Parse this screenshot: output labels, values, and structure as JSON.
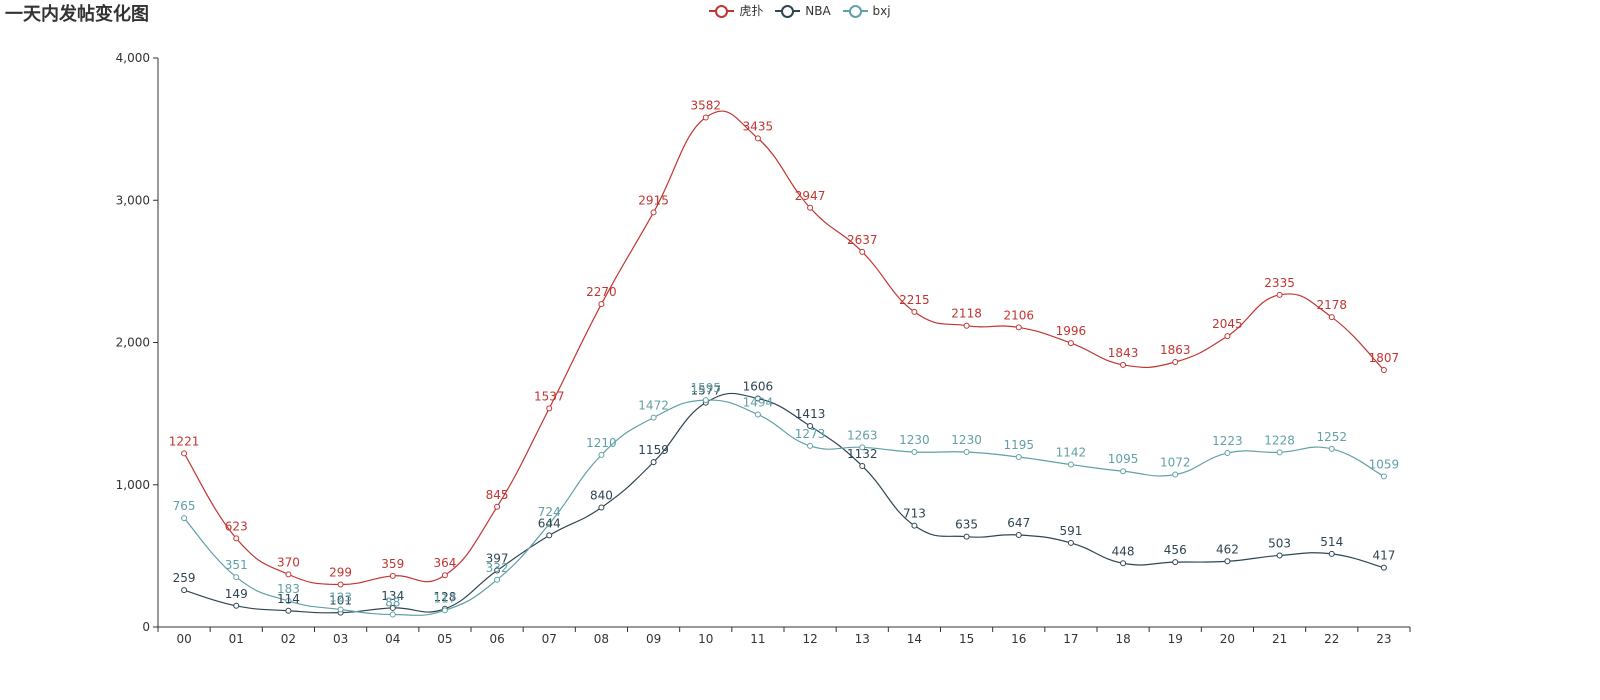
{
  "chart_data": {
    "type": "line",
    "title": "一天内发帖变化图",
    "categories": [
      "00",
      "01",
      "02",
      "03",
      "04",
      "05",
      "06",
      "07",
      "08",
      "09",
      "10",
      "11",
      "12",
      "13",
      "14",
      "15",
      "16",
      "17",
      "18",
      "19",
      "20",
      "21",
      "22",
      "23"
    ],
    "ylim": [
      0,
      4000
    ],
    "yticks": [
      0,
      1000,
      2000,
      3000,
      4000
    ],
    "ytick_labels": [
      "0",
      "1,000",
      "2,000",
      "3,000",
      "4,000"
    ],
    "legend_position": "top-center",
    "grid": false,
    "smooth": true,
    "series": [
      {
        "name": "虎扑",
        "color": "#c23531",
        "values": [
          1221,
          623,
          370,
          299,
          359,
          364,
          845,
          1537,
          2270,
          2915,
          3582,
          3435,
          2947,
          2637,
          2215,
          2118,
          2106,
          1996,
          1843,
          1863,
          2045,
          2335,
          2178,
          1807
        ]
      },
      {
        "name": "NBA",
        "color": "#2f4554",
        "values": [
          259,
          149,
          114,
          101,
          134,
          128,
          397,
          644,
          840,
          1159,
          1577,
          1606,
          1413,
          1132,
          713,
          635,
          647,
          591,
          448,
          456,
          462,
          503,
          514,
          417
        ]
      },
      {
        "name": "bxj",
        "color": "#61a0a8",
        "values": [
          765,
          351,
          183,
          123,
          88,
          117,
          332,
          724,
          1210,
          1472,
          1595,
          1494,
          1273,
          1263,
          1230,
          1230,
          1195,
          1142,
          1095,
          1072,
          1223,
          1228,
          1252,
          1059
        ]
      }
    ]
  }
}
